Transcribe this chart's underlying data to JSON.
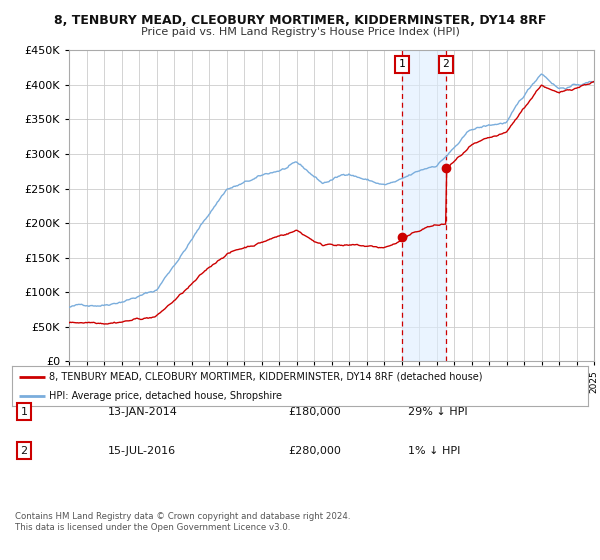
{
  "title": "8, TENBURY MEAD, CLEOBURY MORTIMER, KIDDERMINSTER, DY14 8RF",
  "subtitle": "Price paid vs. HM Land Registry's House Price Index (HPI)",
  "bg_color": "#ffffff",
  "plot_bg_color": "#ffffff",
  "grid_color": "#cccccc",
  "red_line_color": "#cc0000",
  "blue_line_color": "#7aaddc",
  "marker1_date_x": 2014.04,
  "marker2_date_x": 2016.54,
  "marker1_price": 180000,
  "marker2_price": 280000,
  "marker1_label": "1",
  "marker2_label": "2",
  "shade_color": "#ddeeff",
  "legend_entries": [
    "8, TENBURY MEAD, CLEOBURY MORTIMER, KIDDERMINSTER, DY14 8RF (detached house)",
    "HPI: Average price, detached house, Shropshire"
  ],
  "table_rows": [
    [
      "1",
      "13-JAN-2014",
      "£180,000",
      "29% ↓ HPI"
    ],
    [
      "2",
      "15-JUL-2016",
      "£280,000",
      "1% ↓ HPI"
    ]
  ],
  "footer_text": "Contains HM Land Registry data © Crown copyright and database right 2024.\nThis data is licensed under the Open Government Licence v3.0.",
  "ylim": [
    0,
    450000
  ],
  "yticks": [
    0,
    50000,
    100000,
    150000,
    200000,
    250000,
    300000,
    350000,
    400000,
    450000
  ],
  "xlim_start": 1995,
  "xlim_end": 2025
}
